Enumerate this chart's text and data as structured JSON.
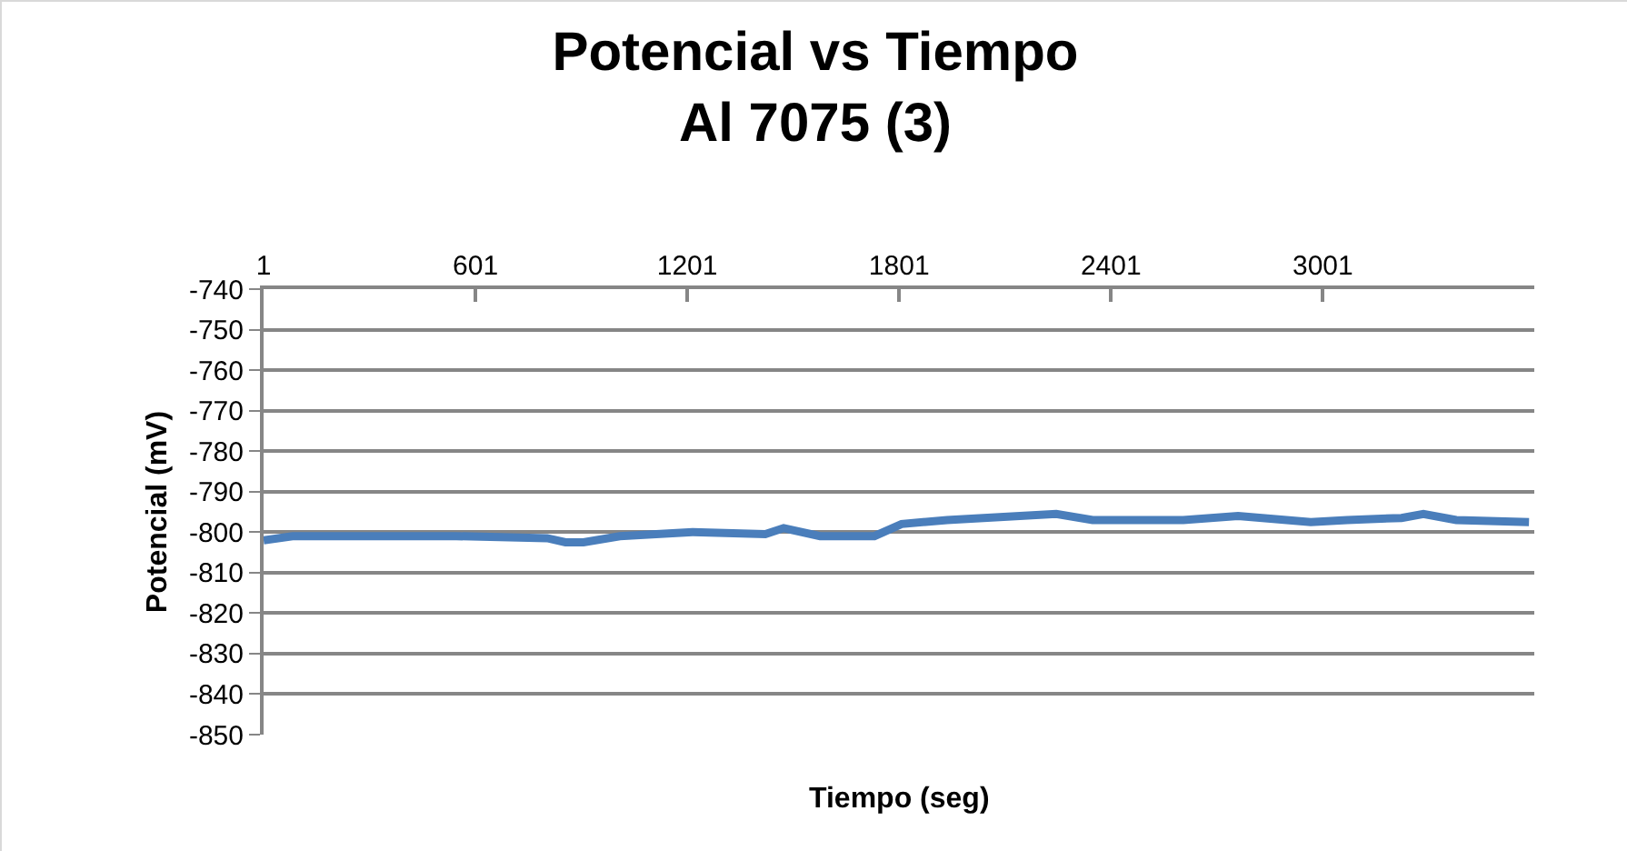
{
  "chart_data": {
    "type": "line",
    "title": "Potencial vs Tiempo\nAl 7075 (3)",
    "xlabel": "Tiempo (seg)",
    "ylabel": "Potencial (mV)",
    "x": [
      1,
      83,
      289,
      547,
      804,
      856,
      907,
      1010,
      1216,
      1422,
      1474,
      1577,
      1731,
      1808,
      1937,
      2143,
      2246,
      2349,
      2606,
      2761,
      2967,
      3070,
      3224,
      3286,
      3379,
      3585
    ],
    "series": [
      {
        "color": "#4a7ebb",
        "values": [
          -802,
          -801,
          -801,
          -801,
          -801.5,
          -802.5,
          -802.5,
          -801,
          -800,
          -800.5,
          -799,
          -801,
          -801,
          -798,
          -797,
          -796,
          -795.5,
          -797,
          -797,
          -796,
          -797.5,
          -797,
          -796.5,
          -795.5,
          -797,
          -797.5
        ]
      }
    ],
    "xlim": [
      1,
      3600
    ],
    "xticks": [
      1,
      601,
      1201,
      1801,
      2401,
      3001
    ],
    "ylim": [
      -850,
      -740
    ],
    "yticks": [
      -850,
      -840,
      -830,
      -820,
      -810,
      -800,
      -790,
      -780,
      -770,
      -760,
      -750,
      -740
    ],
    "grid": "y",
    "marker": "none",
    "line_style": "solid"
  }
}
